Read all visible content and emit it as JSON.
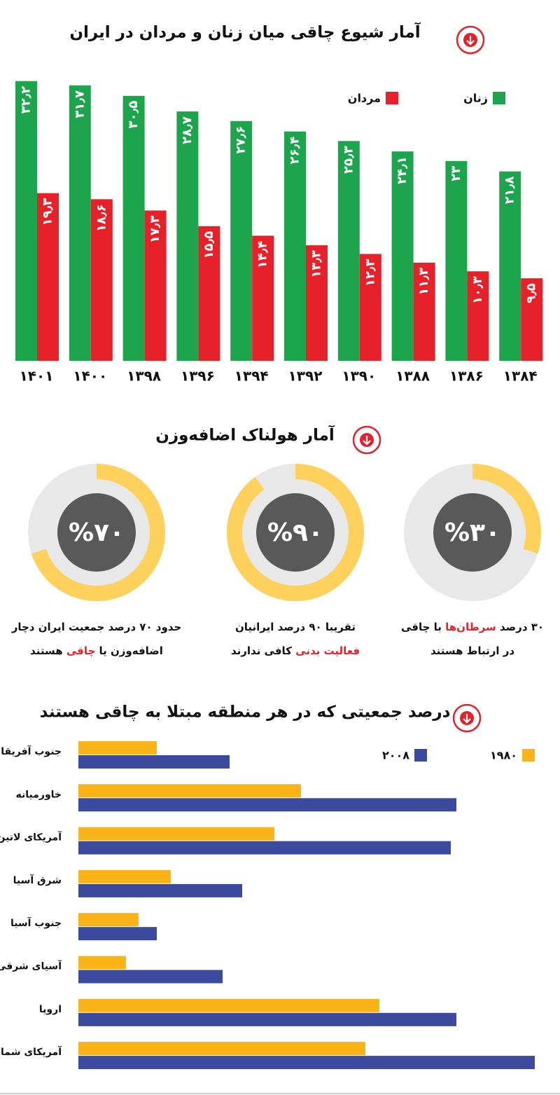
{
  "chart_data": [
    {
      "type": "bar",
      "title": "آمار شیوع چاقی میان زنان و مردان در ایران",
      "categories": [
        "۱۴۰۱",
        "۱۴۰۰",
        "۱۳۹۸",
        "۱۳۹۶",
        "۱۳۹۴",
        "۱۳۹۲",
        "۱۳۹۰",
        "۱۳۸۸",
        "۱۳۸۶",
        "۱۳۸۴"
      ],
      "series": [
        {
          "name": "زنان",
          "color": "#1da54e",
          "values": [
            32.2,
            31.7,
            30.5,
            28.7,
            27.6,
            26.4,
            25.3,
            24.1,
            23,
            21.8
          ],
          "value_labels": [
            "۳۲٫۲",
            "۳۱٫۷",
            "۳۰٫۵",
            "۲۸٫۷",
            "۲۷٫۶",
            "۲۶٫۴",
            "۲۵٫۳",
            "۲۴٫۱",
            "۲۳",
            "۲۱٫۸"
          ]
        },
        {
          "name": "مردان",
          "color": "#e62129",
          "values": [
            19.3,
            18.6,
            17.3,
            15.5,
            14.4,
            13.3,
            12.3,
            11.3,
            10.3,
            9.5
          ],
          "value_labels": [
            "۱۹٫۳",
            "۱۸٫۶",
            "۱۷٫۳",
            "۱۵٫۵",
            "۱۴٫۴",
            "۱۳٫۳",
            "۱۲٫۳",
            "۱۱٫۳",
            "۱۰٫۳",
            "۹٫۵"
          ]
        }
      ]
    },
    {
      "type": "donut",
      "title": "آمار هولناک اضافه‌وزن",
      "color": "#fdd15b",
      "values": [
        30,
        90,
        70
      ],
      "value_labels": [
        "%۳۰",
        "%۹۰",
        "%۷۰"
      ],
      "captions": [
        [
          [
            {
              "text": "۳۰ درصد "
            },
            {
              "text": "سرطان‌ها",
              "color": "#e62129"
            },
            {
              "text": " با چاقی"
            }
          ],
          [
            {
              "text": "در ارتباط هستند"
            }
          ]
        ],
        [
          [
            {
              "text": "تقریبا ۹۰ درصد ایرانیان"
            }
          ],
          [
            {
              "text": "فعالیت بدنی",
              "color": "#e62129"
            },
            {
              "text": " کافی ندارند"
            }
          ]
        ],
        [
          [
            {
              "text": "حدود ۷۰ درصد جمعیت ایران دچار"
            }
          ],
          [
            {
              "text": "اضافه‌وزن یا "
            },
            {
              "text": "چاقی",
              "color": "#e62129"
            },
            {
              "text": " هستند"
            }
          ]
        ]
      ]
    },
    {
      "type": "hbar",
      "title": "درصد جمعیتی که در هر منطقه مبتلا به چاقی هستند",
      "categories": [
        "جنوب آفریقا",
        "خاورمیانه",
        "آمریکای لاتین",
        "شرق آسیا",
        "جنوب آسیا",
        "آسیای شرقی",
        "اروپا",
        "آمریکای شمالی"
      ],
      "series": [
        {
          "name": "۱۹۸۰",
          "color": "#fbb418",
          "values": [
            5.6,
            15.9,
            14,
            6.6,
            4.3,
            3.4,
            21.5,
            20.5
          ]
        },
        {
          "name": "۲۰۰۸",
          "color": "#3b4a9c",
          "values": [
            10.8,
            27,
            26.6,
            11.7,
            5.6,
            10.3,
            27,
            32.6
          ]
        }
      ]
    }
  ]
}
